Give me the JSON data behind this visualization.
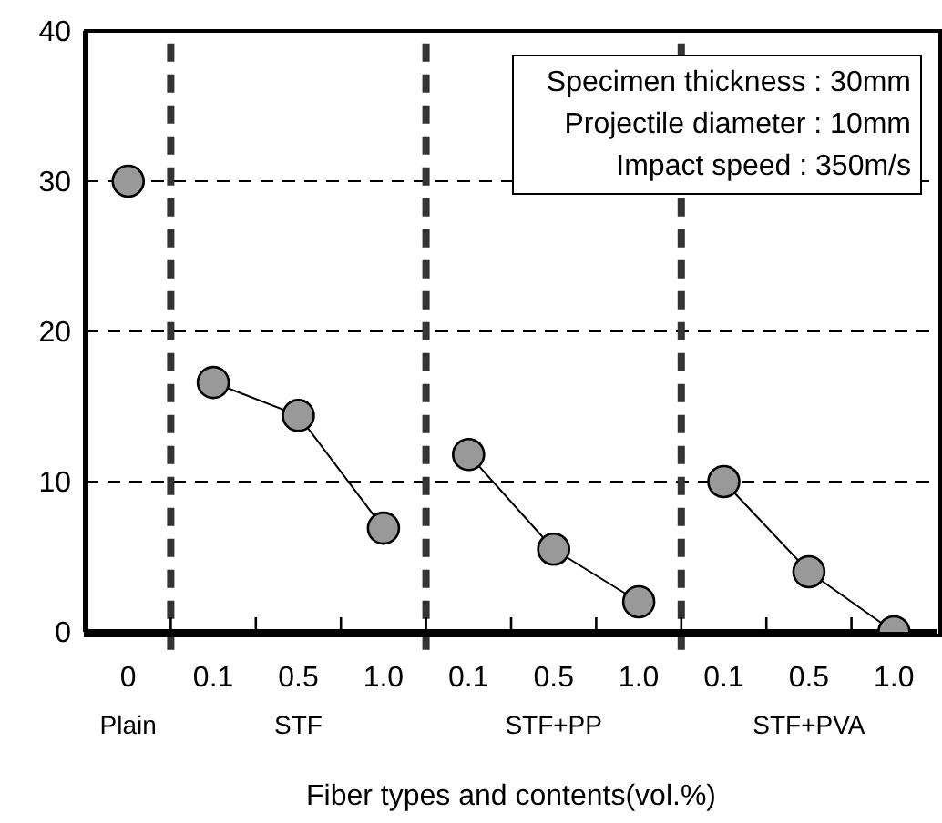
{
  "chart_data": {
    "type": "line",
    "xlabel": "Fiber types and contents(vol.%)",
    "categories": [
      "0",
      "0.1",
      "0.5",
      "1.0",
      "0.1",
      "0.5",
      "1.0",
      "0.1",
      "0.5",
      "1.0"
    ],
    "series": [
      {
        "color": "#999999",
        "values": [
          30,
          null,
          null,
          null,
          null,
          null,
          null,
          null,
          null,
          null
        ]
      },
      {
        "color": "#999999",
        "values": [
          null,
          16.6,
          14.4,
          6.9,
          null,
          null,
          null,
          null,
          null,
          null
        ]
      },
      {
        "color": "#999999",
        "values": [
          null,
          null,
          null,
          null,
          11.8,
          5.5,
          2.0,
          null,
          null,
          null
        ]
      },
      {
        "color": "#999999",
        "values": [
          null,
          null,
          null,
          null,
          null,
          null,
          null,
          10,
          4.0,
          0
        ]
      }
    ],
    "ylim": [
      0,
      40
    ],
    "yticks": [
      0,
      10,
      20,
      30,
      40
    ],
    "grid": "y",
    "marker": "circle",
    "line_style": "solid",
    "annotations": [
      "Plain",
      "STF",
      "STF+PP",
      "STF+PVA",
      "Specimen thickness : 30mm",
      "Projectile diameter : 10mm",
      "Impact speed : 350m/s"
    ]
  }
}
